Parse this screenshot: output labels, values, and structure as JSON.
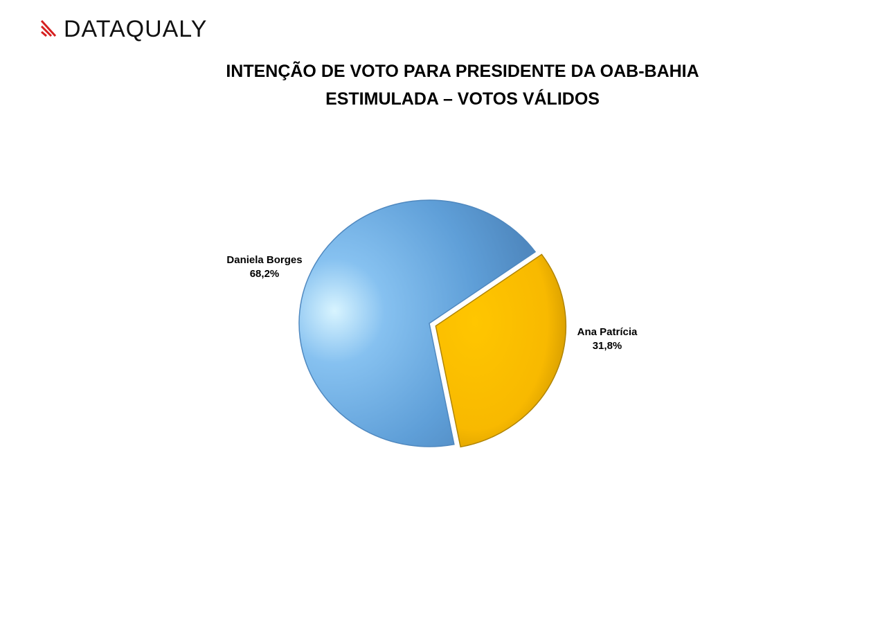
{
  "logo": "DATAQUALY",
  "chart_data": {
    "type": "pie",
    "title": "INTENÇÃO DE VOTO PARA PRESIDENTE DA OAB-BAHIA",
    "subtitle": "ESTIMULADA – VOTOS VÁLIDOS",
    "categories": [
      "Daniela Borges",
      "Ana Patrícia"
    ],
    "values": [
      68.2,
      31.8
    ],
    "value_labels": [
      "68,2%",
      "31,8%"
    ],
    "colors": [
      "#5b9bd5",
      "#ffc000"
    ]
  }
}
